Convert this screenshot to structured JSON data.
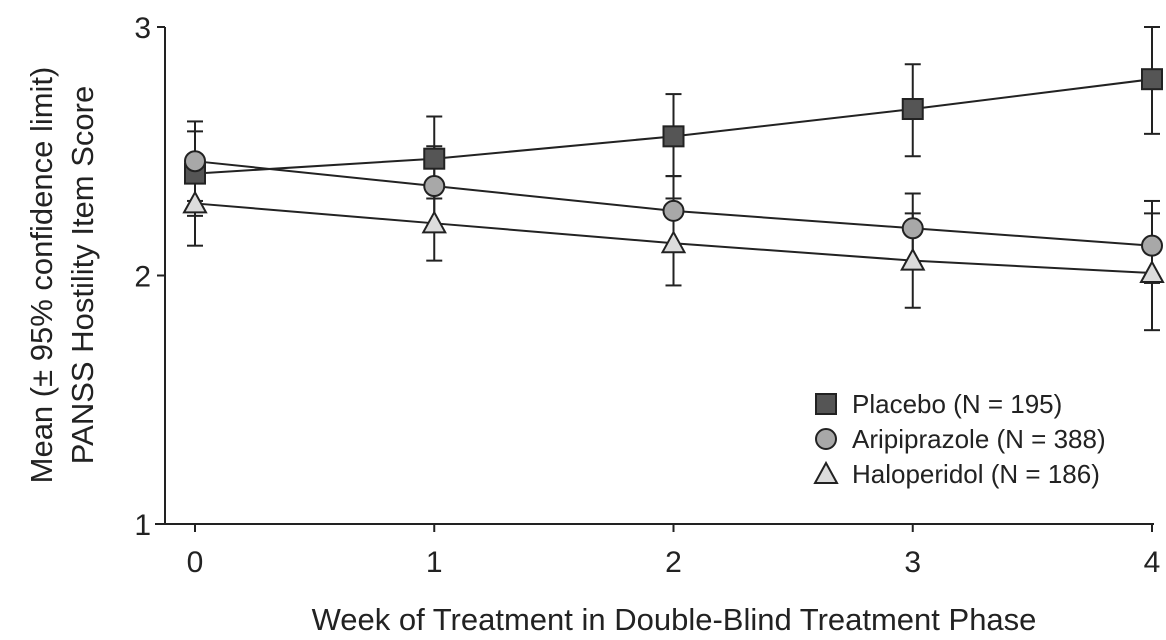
{
  "chart_data": {
    "type": "line",
    "xlabel": "Week of Treatment in Double-Blind Treatment Phase",
    "ylabel_line1": "Mean (± 95% confidence limit)",
    "ylabel_line2": "PANSS Hostility Item Score",
    "x": [
      0,
      1,
      2,
      3,
      4
    ],
    "x_ticks": [
      "0",
      "1",
      "2",
      "3",
      "4"
    ],
    "y_ticks": [
      "1",
      "2",
      "3"
    ],
    "ylim": [
      1,
      3
    ],
    "xlim": [
      0,
      4
    ],
    "grid": false,
    "legend_position": "bottom-right",
    "series": [
      {
        "name": "Placebo (N = 195)",
        "marker": "square",
        "fill": "#555555",
        "values": [
          2.41,
          2.47,
          2.56,
          2.67,
          2.79
        ],
        "ci_low": [
          2.24,
          2.31,
          2.4,
          2.48,
          2.57
        ],
        "ci_high": [
          2.58,
          2.64,
          2.73,
          2.85,
          3.0
        ]
      },
      {
        "name": "Aripiprazole (N = 388)",
        "marker": "circle",
        "fill": "#a8a8a8",
        "values": [
          2.46,
          2.36,
          2.26,
          2.19,
          2.12
        ],
        "ci_low": [
          2.3,
          2.2,
          2.12,
          2.05,
          1.97
        ],
        "ci_high": [
          2.62,
          2.52,
          2.4,
          2.33,
          2.3
        ]
      },
      {
        "name": "Haloperidol (N = 186)",
        "marker": "triangle",
        "fill": "#dcdcdc",
        "values": [
          2.29,
          2.21,
          2.13,
          2.06,
          2.01
        ],
        "ci_low": [
          2.12,
          2.06,
          1.96,
          1.87,
          1.78
        ],
        "ci_high": [
          2.47,
          2.37,
          2.31,
          2.25,
          2.25
        ]
      }
    ]
  }
}
